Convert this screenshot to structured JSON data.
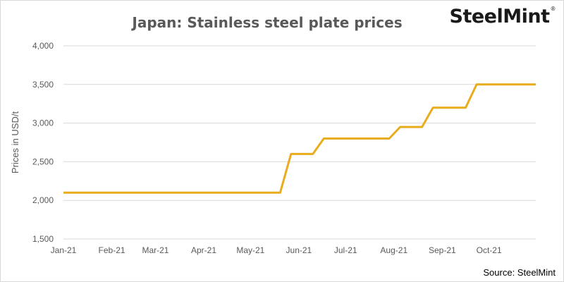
{
  "chart_title": "Japan: Stainless steel plate prices",
  "brand": {
    "name": "SteelMint",
    "mark": "®"
  },
  "source": "Source: SteelMint",
  "colors": {
    "line": "#e8ac1c",
    "grid": "#d9d9d9",
    "text": "#595959"
  },
  "chart_data": {
    "type": "line",
    "title": "Japan: Stainless steel plate prices",
    "xlabel": "",
    "ylabel": "Prices in USD/t",
    "ylim": [
      1500,
      4000
    ],
    "yticks": [
      1500,
      2000,
      2500,
      3000,
      3500,
      4000
    ],
    "ytick_labels": [
      "1,500",
      "2,000",
      "2,500",
      "3,000",
      "3,500",
      "4,000"
    ],
    "xlim": [
      "2021-01-01",
      "2021-10-31"
    ],
    "xticks": [
      "2021-01-01",
      "2021-02-01",
      "2021-03-01",
      "2021-04-01",
      "2021-05-01",
      "2021-06-01",
      "2021-07-01",
      "2021-08-01",
      "2021-09-01",
      "2021-10-01"
    ],
    "xtick_labels": [
      "Jan-21",
      "Feb-21",
      "Mar-21",
      "Apr-21",
      "May-21",
      "Jun-21",
      "Jul-21",
      "Aug-21",
      "Sep-21",
      "Oct-21"
    ],
    "grid": "horizontal",
    "series": [
      {
        "x": [
          "2021-01-01",
          "2021-05-20",
          "2021-05-27",
          "2021-06-10",
          "2021-06-17",
          "2021-07-08",
          "2021-07-15",
          "2021-07-29",
          "2021-08-05",
          "2021-08-19",
          "2021-08-26",
          "2021-09-16",
          "2021-09-23",
          "2021-10-31"
        ],
        "y": [
          2100,
          2100,
          2600,
          2600,
          2800,
          2800,
          2800,
          2800,
          2950,
          2950,
          3200,
          3200,
          3500,
          3500
        ]
      }
    ]
  }
}
